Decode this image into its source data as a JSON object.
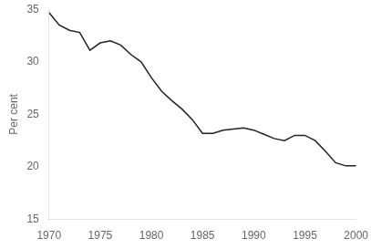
{
  "chart_data": {
    "type": "line",
    "ylabel": "Per cent",
    "x": [
      1970,
      1971,
      1972,
      1973,
      1974,
      1975,
      1976,
      1977,
      1978,
      1979,
      1980,
      1981,
      1982,
      1983,
      1984,
      1985,
      1986,
      1987,
      1988,
      1989,
      1990,
      1991,
      1992,
      1993,
      1994,
      1995,
      1996,
      1997,
      1998,
      1999,
      2000
    ],
    "values": [
      34.7,
      33.5,
      33.0,
      32.8,
      31.1,
      31.8,
      32.0,
      31.6,
      30.7,
      30.0,
      28.5,
      27.2,
      26.3,
      25.5,
      24.5,
      23.2,
      23.2,
      23.5,
      23.6,
      23.7,
      23.5,
      23.1,
      22.7,
      22.5,
      23.0,
      23.0,
      22.5,
      21.5,
      20.4,
      20.1,
      20.1
    ],
    "color": "#222222",
    "xlim": [
      1970,
      2000
    ],
    "ylim": [
      15,
      35
    ],
    "xticks": [
      1970,
      1975,
      1980,
      1985,
      1990,
      1995,
      2000
    ],
    "yticks": [
      15,
      20,
      25,
      30,
      35
    ],
    "grid": false
  }
}
